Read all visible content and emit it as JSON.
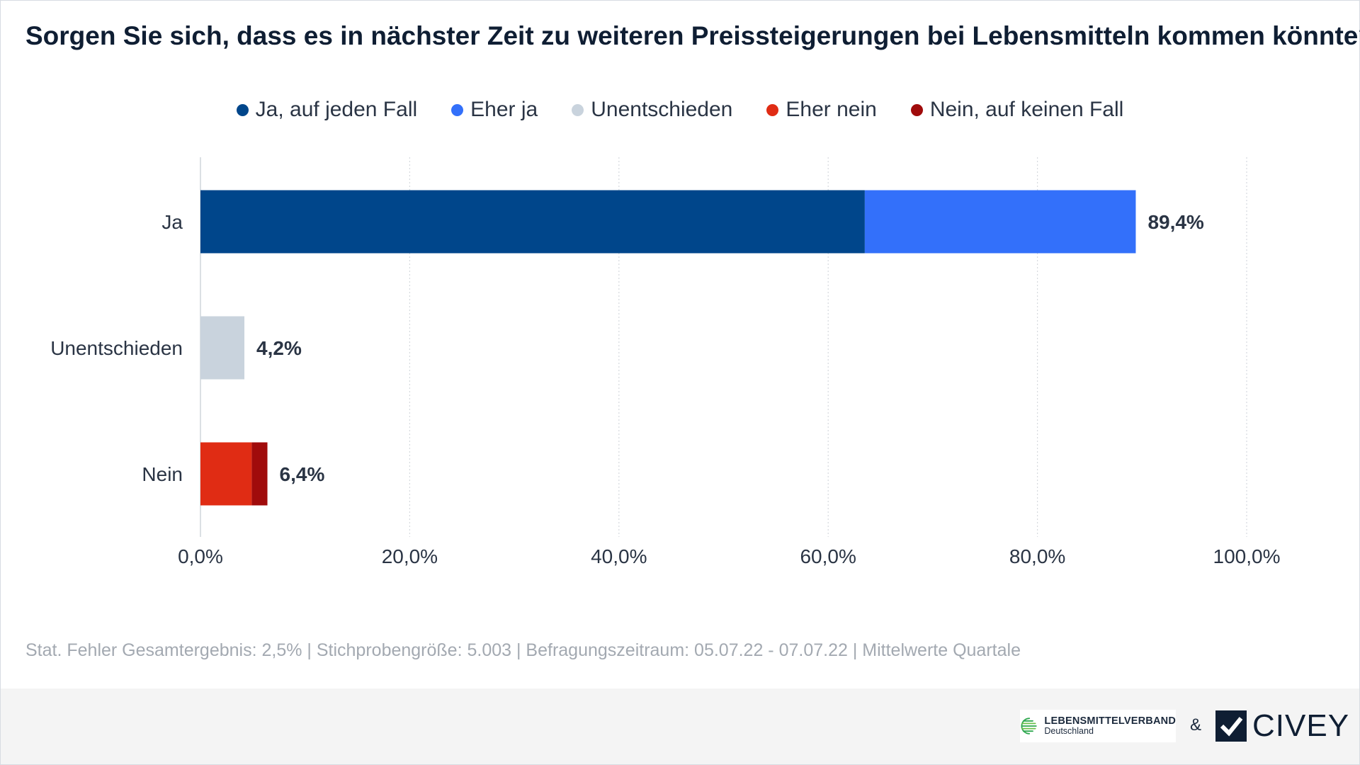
{
  "title": "Sorgen Sie sich, dass es in nächster Zeit zu weiteren Preissteigerungen bei Lebensmitteln kommen könnte?",
  "legend": [
    {
      "label": "Ja, auf jeden Fall",
      "color": "#00468b"
    },
    {
      "label": "Eher ja",
      "color": "#3370fa"
    },
    {
      "label": "Unentschieden",
      "color": "#c9d3dd"
    },
    {
      "label": "Eher nein",
      "color": "#e02c14"
    },
    {
      "label": "Nein, auf keinen Fall",
      "color": "#a00b0b"
    }
  ],
  "chart_data": {
    "type": "bar",
    "orientation": "horizontal",
    "stacked": true,
    "categories": [
      "Ja",
      "Unentschieden",
      "Nein"
    ],
    "series": [
      {
        "name": "Ja, auf jeden Fall",
        "color": "#00468b",
        "values": [
          63.5,
          0,
          0
        ]
      },
      {
        "name": "Eher ja",
        "color": "#3370fa",
        "values": [
          25.9,
          0,
          0
        ]
      },
      {
        "name": "Unentschieden",
        "color": "#c9d3dd",
        "values": [
          0,
          4.2,
          0
        ]
      },
      {
        "name": "Eher nein",
        "color": "#e02c14",
        "values": [
          0,
          0,
          4.9
        ]
      },
      {
        "name": "Nein, auf keinen Fall",
        "color": "#a00b0b",
        "values": [
          0,
          0,
          1.5
        ]
      }
    ],
    "totals": [
      "89,4%",
      "4,2%",
      "6,4%"
    ],
    "xlim": [
      0,
      100
    ],
    "xticks": [
      0,
      20,
      40,
      60,
      80,
      100
    ],
    "xtick_labels": [
      "0,0%",
      "20,0%",
      "40,0%",
      "60,0%",
      "80,0%",
      "100,0%"
    ],
    "grid": true,
    "legend_position": "top"
  },
  "footnote": "Stat. Fehler Gesamtergebnis: 2,5% | Stichprobengröße: 5.003 | Befragungszeitraum: 05.07.22 - 07.07.22 | Mittelwerte Quartale",
  "logos": {
    "lebensmittelverband": {
      "name": "LEBENSMITTELVERBAND",
      "sub": "Deutschland"
    },
    "ampersand": "&",
    "civey": "CIVEY"
  }
}
